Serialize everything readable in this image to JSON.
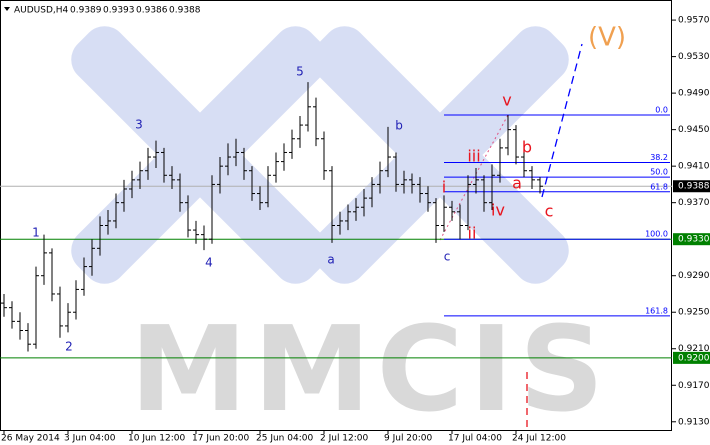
{
  "chart_data": {
    "type": "ohlc",
    "title": "AUDUSD,H4",
    "header_values": [
      0.9389,
      0.9393,
      0.9386,
      0.9388
    ],
    "watermark": "MMCIS",
    "color": "#000000",
    "open": [
      0.926,
      0.9255,
      0.924,
      0.923,
      0.9215,
      0.929,
      0.9315,
      0.927,
      0.9235,
      0.925,
      0.9275,
      0.93,
      0.932,
      0.9345,
      0.935,
      0.937,
      0.9385,
      0.9395,
      0.9405,
      0.942,
      0.9425,
      0.94,
      0.9395,
      0.937,
      0.934,
      0.9335,
      0.933,
      0.939,
      0.941,
      0.942,
      0.9425,
      0.9405,
      0.938,
      0.937,
      0.94,
      0.9415,
      0.9425,
      0.944,
      0.9455,
      0.9475,
      0.944,
      0.9405,
      0.9345,
      0.935,
      0.936,
      0.9365,
      0.9375,
      0.939,
      0.9405,
      0.942,
      0.939,
      0.9395,
      0.939,
      0.938,
      0.937,
      0.9345,
      0.9365,
      0.936,
      0.9345,
      0.939,
      0.9395,
      0.937,
      0.94,
      0.943,
      0.945,
      0.942,
      0.9405,
      0.9395
    ],
    "high": [
      0.927,
      0.9262,
      0.925,
      0.9238,
      0.93,
      0.9335,
      0.932,
      0.9278,
      0.926,
      0.9285,
      0.931,
      0.933,
      0.9355,
      0.9362,
      0.938,
      0.9395,
      0.9405,
      0.9415,
      0.943,
      0.9438,
      0.943,
      0.941,
      0.9402,
      0.9378,
      0.935,
      0.9345,
      0.94,
      0.942,
      0.9435,
      0.944,
      0.943,
      0.941,
      0.9388,
      0.941,
      0.9425,
      0.9435,
      0.945,
      0.9465,
      0.9502,
      0.9485,
      0.9448,
      0.941,
      0.936,
      0.9368,
      0.9375,
      0.9385,
      0.9398,
      0.9415,
      0.9453,
      0.9425,
      0.9405,
      0.9402,
      0.9398,
      0.9388,
      0.9375,
      0.9378,
      0.9372,
      0.9368,
      0.94,
      0.9408,
      0.94,
      0.9412,
      0.944,
      0.9466,
      0.9455,
      0.9428,
      0.941,
      0.9398
    ],
    "low": [
      0.9245,
      0.9232,
      0.922,
      0.9207,
      0.921,
      0.928,
      0.9262,
      0.9222,
      0.9228,
      0.9242,
      0.9268,
      0.929,
      0.9312,
      0.9335,
      0.9342,
      0.936,
      0.9375,
      0.9385,
      0.9395,
      0.9408,
      0.9392,
      0.9385,
      0.936,
      0.9332,
      0.9325,
      0.9318,
      0.9325,
      0.938,
      0.94,
      0.941,
      0.9395,
      0.9372,
      0.9362,
      0.9365,
      0.9392,
      0.9405,
      0.9418,
      0.943,
      0.9448,
      0.9432,
      0.9395,
      0.9326,
      0.9335,
      0.934,
      0.935,
      0.9355,
      0.9365,
      0.938,
      0.9398,
      0.9382,
      0.938,
      0.938,
      0.937,
      0.936,
      0.9326,
      0.9338,
      0.935,
      0.933,
      0.934,
      0.938,
      0.936,
      0.9362,
      0.9392,
      0.9422,
      0.9412,
      0.9398,
      0.9385,
      0.938
    ],
    "close": [
      0.9255,
      0.924,
      0.923,
      0.9215,
      0.929,
      0.9315,
      0.927,
      0.9235,
      0.925,
      0.9275,
      0.93,
      0.932,
      0.9345,
      0.935,
      0.937,
      0.9385,
      0.9395,
      0.9405,
      0.942,
      0.9425,
      0.94,
      0.9395,
      0.937,
      0.934,
      0.9335,
      0.933,
      0.939,
      0.941,
      0.942,
      0.9425,
      0.9405,
      0.938,
      0.937,
      0.94,
      0.9415,
      0.9425,
      0.944,
      0.9455,
      0.9475,
      0.944,
      0.9405,
      0.9345,
      0.935,
      0.936,
      0.9365,
      0.9375,
      0.939,
      0.9405,
      0.942,
      0.939,
      0.9395,
      0.939,
      0.938,
      0.937,
      0.9345,
      0.9365,
      0.936,
      0.9345,
      0.939,
      0.9395,
      0.937,
      0.94,
      0.943,
      0.945,
      0.942,
      0.9405,
      0.9395,
      0.9388
    ],
    "xlim": [
      -0.5,
      83.5
    ],
    "xticks": [
      {
        "value": 0,
        "label": "26 May 2014"
      },
      {
        "value": 8,
        "label": "3 Jun 04:00"
      },
      {
        "value": 16,
        "label": "10 Jun 12:00"
      },
      {
        "value": 24,
        "label": "17 Jun 20:00"
      },
      {
        "value": 32,
        "label": "25 Jun 04:00"
      },
      {
        "value": 40,
        "label": "2 Jul 12:00"
      },
      {
        "value": 48,
        "label": "9 Jul 20:00"
      },
      {
        "value": 56,
        "label": "17 Jul 04:00"
      },
      {
        "value": 64,
        "label": "24 Jul 12:00"
      }
    ],
    "ylim": [
      0.9121,
      0.9592
    ],
    "yticks": [
      {
        "value": 0.913,
        "label": "0.9130"
      },
      {
        "value": 0.917,
        "label": "0.9170"
      },
      {
        "value": 0.921,
        "label": "0.9210"
      },
      {
        "value": 0.925,
        "label": "0.9250"
      },
      {
        "value": 0.929,
        "label": "0.9290"
      },
      {
        "value": 0.937,
        "label": "0.9370"
      },
      {
        "value": 0.941,
        "label": "0.9410"
      },
      {
        "value": 0.945,
        "label": "0.9450"
      },
      {
        "value": 0.949,
        "label": "0.9490"
      },
      {
        "value": 0.953,
        "label": "0.9530"
      },
      {
        "value": 0.957,
        "label": "0.9570"
      }
    ],
    "last_price": 0.9388,
    "hlines": [
      {
        "value": 0.933,
        "label": "0.9330",
        "color": "#008000"
      },
      {
        "value": 0.92,
        "label": "0.9200",
        "color": "#008000"
      }
    ],
    "fib": {
      "high": 0.9466,
      "low": 0.933,
      "color": "#0000ff",
      "levels": [
        {
          "value": 0,
          "label": "0.0"
        },
        {
          "value": 38.2,
          "label": "38.2"
        },
        {
          "value": 50,
          "label": "50.0"
        },
        {
          "value": 61.8,
          "label": "61.8"
        },
        {
          "value": 100,
          "label": "100.0"
        },
        {
          "value": 161.8,
          "label": "161.8"
        }
      ]
    },
    "waves_major": [
      "1",
      "2",
      "3",
      "4",
      "5",
      "a",
      "b",
      "c"
    ],
    "waves_minor": [
      "i",
      "ii",
      "iii",
      "iv",
      "v",
      "a",
      "b",
      "c"
    ],
    "wave_target": "(V)"
  }
}
